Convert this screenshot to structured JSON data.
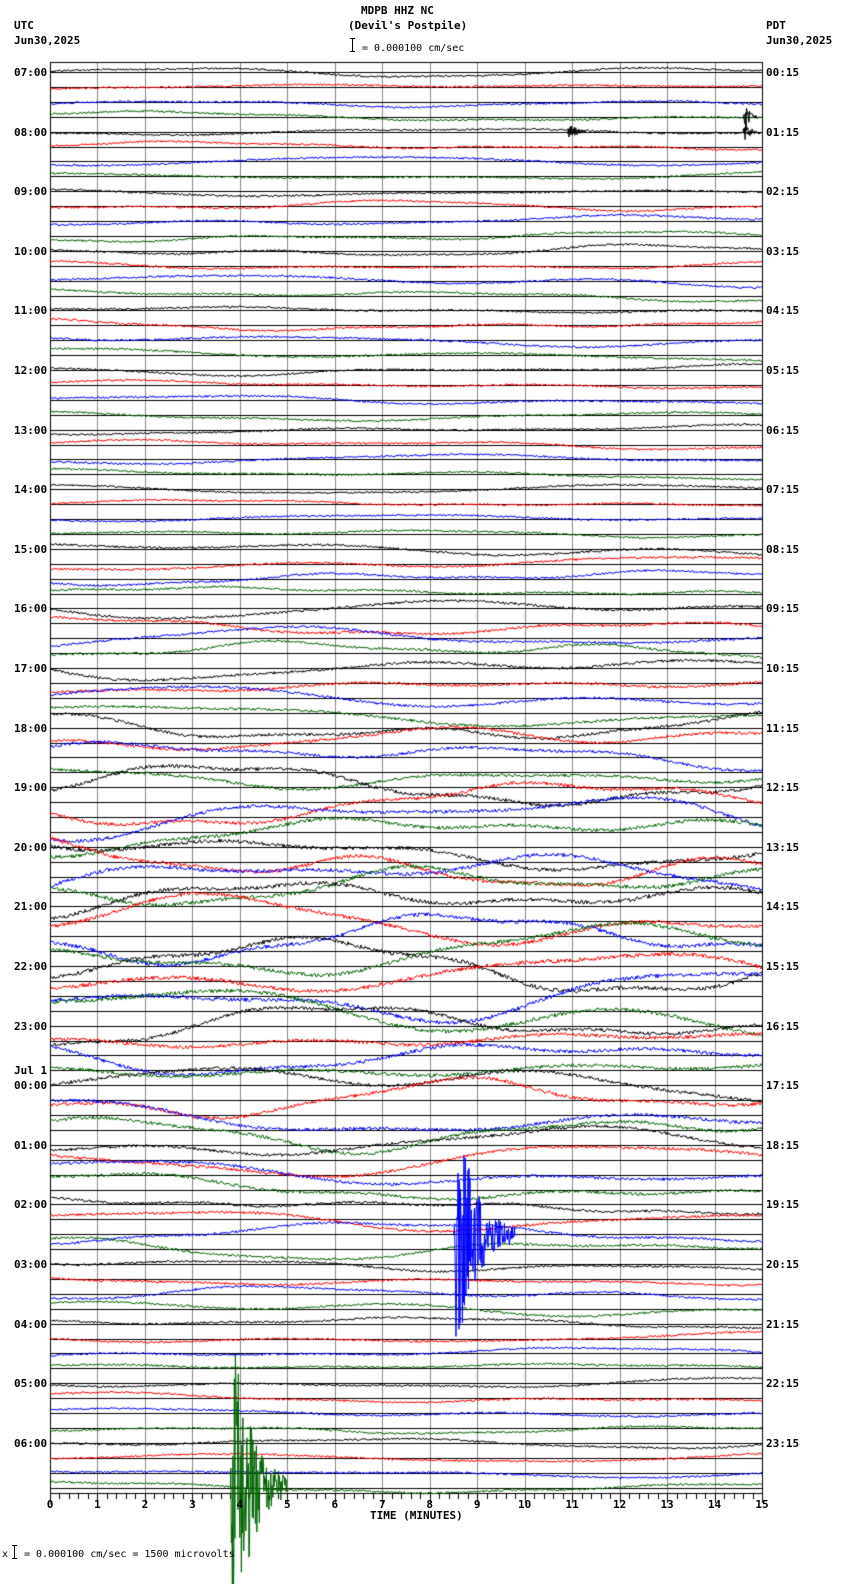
{
  "header": {
    "station": "MDPB HHZ NC",
    "location": "(Devil's Postpile)",
    "scale_text": "= 0.000100 cm/sec",
    "left_tz": "UTC",
    "left_date": "Jun30,2025",
    "right_tz": "PDT",
    "right_date": "Jun30,2025"
  },
  "footer": {
    "prefix": "x",
    "scale_text": "= 0.000100 cm/sec =    1500 microvolts"
  },
  "chart_data": {
    "type": "line",
    "title": "MDPB HHZ NC (Devil's Postpile)",
    "xlabel": "TIME (MINUTES)",
    "ylabel": "",
    "xlim": [
      0,
      15
    ],
    "x_ticks": [
      "0",
      "1",
      "2",
      "3",
      "4",
      "5",
      "6",
      "7",
      "8",
      "9",
      "10",
      "11",
      "12",
      "13",
      "14",
      "15"
    ],
    "grid": true,
    "trace_colors": [
      "#000000",
      "#ff0000",
      "#0000ff",
      "#006400"
    ],
    "traces_per_hour": 4,
    "left_labels": [
      "07:00",
      "08:00",
      "09:00",
      "10:00",
      "11:00",
      "12:00",
      "13:00",
      "14:00",
      "15:00",
      "16:00",
      "17:00",
      "18:00",
      "19:00",
      "20:00",
      "21:00",
      "22:00",
      "23:00",
      "00:00",
      "01:00",
      "02:00",
      "03:00",
      "04:00",
      "05:00",
      "06:00"
    ],
    "left_date_change": {
      "label": "Jul 1",
      "before_index": 17
    },
    "right_labels": [
      "00:15",
      "01:15",
      "02:15",
      "03:15",
      "04:15",
      "05:15",
      "06:15",
      "07:15",
      "08:15",
      "09:15",
      "10:15",
      "11:15",
      "12:15",
      "13:15",
      "14:15",
      "15:15",
      "16:15",
      "17:15",
      "18:15",
      "19:15",
      "20:15",
      "21:15",
      "22:15",
      "23:15"
    ],
    "hour_activity": [
      0.35,
      0.35,
      0.4,
      0.45,
      0.45,
      0.4,
      0.35,
      0.3,
      0.55,
      0.8,
      0.9,
      1.1,
      1.6,
      1.8,
      1.9,
      2.0,
      1.6,
      1.5,
      1.2,
      0.8,
      0.55,
      0.45,
      0.4,
      0.4
    ],
    "events": [
      {
        "trace": 4,
        "minute": 10.9,
        "amplitude": 14,
        "duration_min": 0.4,
        "color": "#000000"
      },
      {
        "trace": 3,
        "minute": 14.6,
        "amplitude": 24,
        "duration_min": 0.3,
        "color": "#000000"
      },
      {
        "trace": 4,
        "minute": 14.6,
        "amplitude": 20,
        "duration_min": 0.3,
        "color": "#000000"
      },
      {
        "trace": 78,
        "minute": 8.5,
        "amplitude": 140,
        "duration_min": 1.3,
        "color": "#0000ff"
      },
      {
        "trace": 95,
        "minute": 3.8,
        "amplitude": 180,
        "duration_min": 1.2,
        "color": "#006400"
      }
    ]
  }
}
